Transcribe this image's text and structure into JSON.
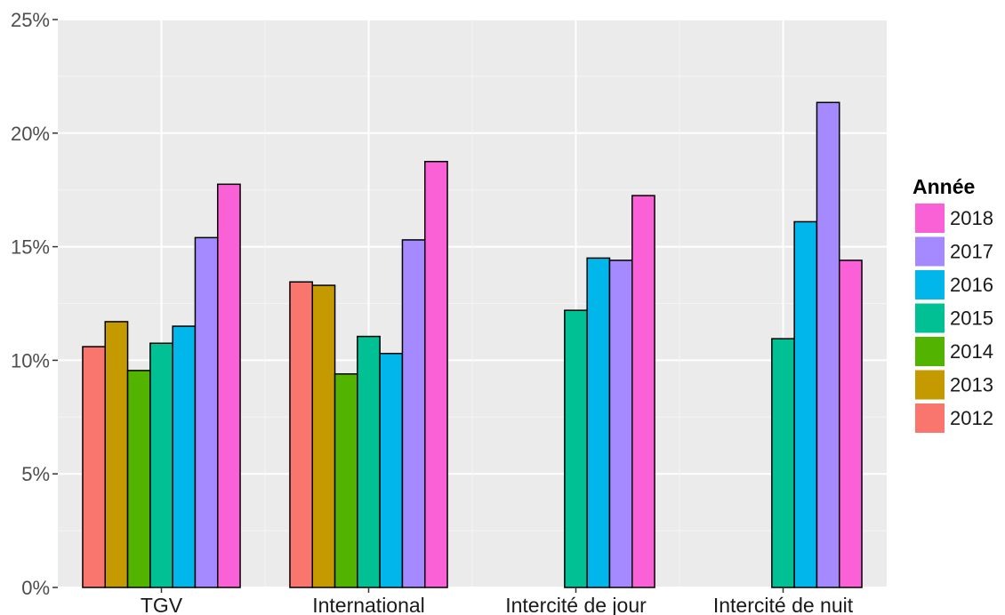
{
  "chart_data": {
    "type": "bar",
    "categories": [
      "TGV",
      "International",
      "Intercité de jour",
      "Intercité de nuit"
    ],
    "series": [
      {
        "name": "2012",
        "color": "#F8766D",
        "values": [
          10.6,
          13.45,
          null,
          null
        ]
      },
      {
        "name": "2013",
        "color": "#C49A00",
        "values": [
          11.7,
          13.3,
          null,
          null
        ]
      },
      {
        "name": "2014",
        "color": "#53B400",
        "values": [
          9.55,
          9.4,
          null,
          null
        ]
      },
      {
        "name": "2015",
        "color": "#00C094",
        "values": [
          10.75,
          11.05,
          12.2,
          10.95
        ]
      },
      {
        "name": "2016",
        "color": "#00B6EB",
        "values": [
          11.5,
          10.3,
          14.5,
          16.1
        ]
      },
      {
        "name": "2017",
        "color": "#A58AFF",
        "values": [
          15.4,
          15.3,
          14.4,
          21.35
        ]
      },
      {
        "name": "2018",
        "color": "#FB61D7",
        "values": [
          17.75,
          18.75,
          17.25,
          14.4
        ]
      }
    ],
    "ylim": [
      0,
      25
    ],
    "yticks": [
      "0%",
      "5%",
      "10%",
      "15%",
      "20%",
      "25%"
    ],
    "ytick_values": [
      0,
      5,
      10,
      15,
      20,
      25
    ],
    "xlabel": "",
    "ylabel": "",
    "grid": true,
    "legend": {
      "title": "Année",
      "position": "right",
      "order": [
        "2018",
        "2017",
        "2016",
        "2015",
        "2014",
        "2013",
        "2012"
      ]
    }
  }
}
